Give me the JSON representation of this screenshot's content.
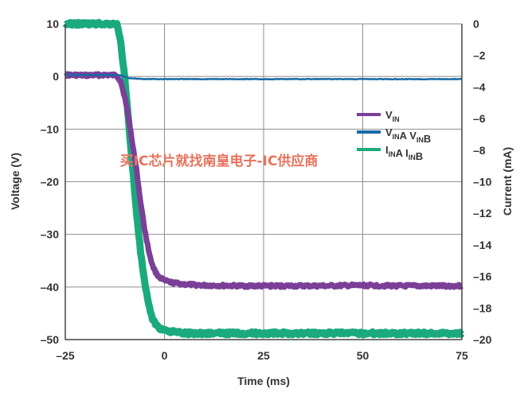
{
  "chart_data": {
    "type": "line",
    "title": "",
    "xlabel": "Time (ms)",
    "ylabel": "Voltage (V)",
    "y2label": "Current (mA)",
    "xlim": [
      -25,
      75
    ],
    "ylim": [
      -50,
      10
    ],
    "y2lim": [
      -20,
      0
    ],
    "x_ticks": [
      "-25",
      "0",
      "25",
      "50",
      "75"
    ],
    "y_ticks": [
      "10",
      "0",
      "-10",
      "-20",
      "-30",
      "-40",
      "-50"
    ],
    "y2_ticks": [
      "0",
      "-2",
      "-4",
      "-6",
      "-8",
      "-10",
      "-12",
      "-14",
      "-16",
      "-18",
      "-20"
    ],
    "grid": true,
    "legend_position": "right",
    "series": [
      {
        "name": "V_IN",
        "color": "#7b3f98",
        "axis": "left",
        "x": [
          -25,
          -20,
          -15,
          -12,
          -11,
          -10,
          -9,
          -8,
          -7,
          -6,
          -5,
          -4,
          -3,
          -2,
          -1,
          0,
          2,
          5,
          10,
          20,
          30,
          40,
          50,
          60,
          70,
          75
        ],
        "y": [
          0.3,
          0.2,
          0.3,
          0.2,
          -1,
          -4,
          -8,
          -13,
          -18,
          -24,
          -29,
          -33,
          -36,
          -37.5,
          -38.3,
          -38.8,
          -39.2,
          -39.5,
          -39.7,
          -39.8,
          -39.8,
          -39.8,
          -39.7,
          -39.8,
          -39.8,
          -39.8
        ]
      },
      {
        "name": "V_INA V_INB",
        "color": "#1b6aa5",
        "axis": "left",
        "x": [
          -25,
          -15,
          -11,
          -9,
          -5,
          0,
          10,
          25,
          50,
          75
        ],
        "y": [
          0.3,
          0.3,
          0.2,
          -0.3,
          -0.5,
          -0.5,
          -0.5,
          -0.5,
          -0.5,
          -0.5
        ]
      },
      {
        "name": "I_INA I_INB",
        "color": "#1aaa7d",
        "axis": "right",
        "x": [
          -25,
          -20,
          -15,
          -12,
          -11,
          -10,
          -9,
          -8,
          -7,
          -6,
          -5,
          -4,
          -3,
          -2,
          -1,
          0,
          2,
          5,
          10,
          20,
          30,
          40,
          50,
          60,
          70,
          75
        ],
        "y": [
          0,
          0,
          0,
          0,
          -1.2,
          -3.5,
          -6.3,
          -9.2,
          -12,
          -14.5,
          -16.4,
          -17.8,
          -18.7,
          -19.1,
          -19.3,
          -19.4,
          -19.5,
          -19.6,
          -19.6,
          -19.6,
          -19.6,
          -19.6,
          -19.6,
          -19.6,
          -19.6,
          -19.6
        ]
      }
    ],
    "legend": [
      {
        "main": "V",
        "sub": "IN",
        "color": "#7b3f98"
      },
      {
        "parts": [
          [
            "V",
            "IN"
          ],
          [
            "A V",
            "IN"
          ],
          [
            "B",
            ""
          ]
        ],
        "color": "#1b6aa5"
      },
      {
        "parts": [
          [
            "I",
            "IN"
          ],
          [
            "A I",
            "IN"
          ],
          [
            "B",
            ""
          ]
        ],
        "color": "#1aaa7d"
      }
    ]
  },
  "watermark": "买IC芯片就找南皇电子-IC供应商"
}
